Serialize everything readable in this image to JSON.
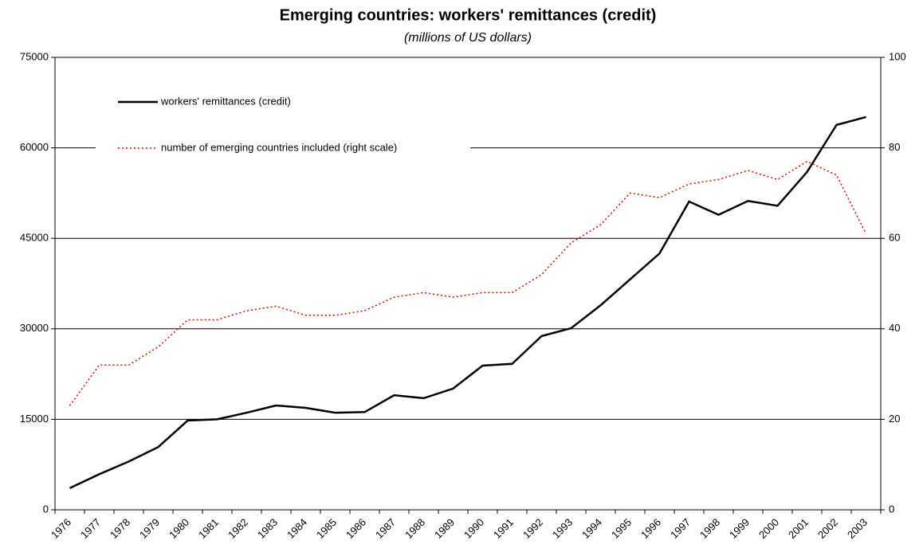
{
  "chart_data": {
    "type": "line",
    "title": "Emerging countries: workers' remittances (credit)",
    "subtitle": "(millions of US dollars)",
    "categories": [
      "1976",
      "1977",
      "1978",
      "1979",
      "1980",
      "1981",
      "1982",
      "1983",
      "1984",
      "1985",
      "1986",
      "1987",
      "1988",
      "1989",
      "1990",
      "1991",
      "1992",
      "1993",
      "1994",
      "1995",
      "1996",
      "1997",
      "1998",
      "1999",
      "2000",
      "2001",
      "2002",
      "2003"
    ],
    "series": [
      {
        "name": "workers' remittances (credit)",
        "color": "#000000",
        "values": [
          3600,
          5900,
          8000,
          10400,
          14800,
          15000,
          16100,
          17300,
          16900,
          16100,
          16200,
          19000,
          18500,
          20100,
          23900,
          24200,
          28800,
          30100,
          33900,
          38200,
          42500,
          51100,
          48900,
          51200,
          50400,
          56000,
          63800,
          65100
        ]
      },
      {
        "name": "number of emerging countries included (right scale)",
        "color": "#e00000",
        "axis": "y2",
        "values": [
          23,
          32,
          32,
          36,
          42,
          42,
          44,
          45,
          43,
          43,
          44,
          47,
          48,
          47,
          48,
          48,
          52,
          59,
          63,
          70,
          69,
          72,
          73,
          75,
          73,
          77,
          74,
          61
        ]
      }
    ],
    "ylim": [
      0,
      75000
    ],
    "yticks": [
      0,
      15000,
      30000,
      45000,
      60000,
      75000
    ],
    "y2lim": [
      0,
      100
    ],
    "y2ticks": [
      0,
      20,
      40,
      60,
      80,
      100
    ],
    "grid": true
  }
}
